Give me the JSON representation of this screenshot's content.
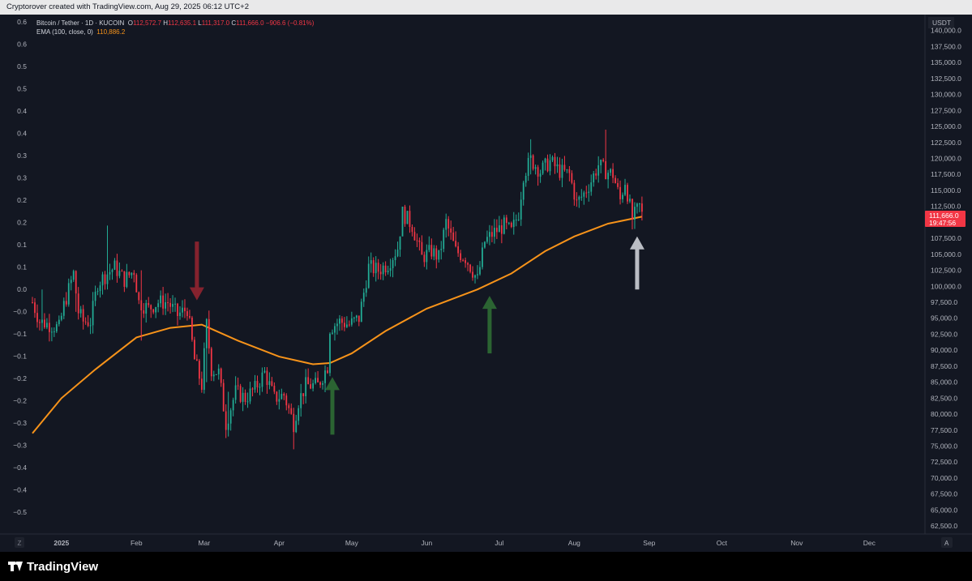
{
  "header": {
    "caption": "Cryptorover created with TradingView.com, Aug 29, 2025 06:12 UTC+2"
  },
  "legend": {
    "symbol": "Bitcoin / Tether · 1D · KUCOIN",
    "open_label": "O",
    "open": "112,572.7",
    "high_label": "H",
    "high": "112,635.1",
    "low_label": "L",
    "low": "111,317.0",
    "close_label": "C",
    "close": "111,666.0",
    "change": "−906.6 (−0.81%)",
    "ema_label": "EMA (100, close, 0)",
    "ema_value": "110,886.2"
  },
  "price_scale": {
    "currency": "USDT",
    "last_price": "111,666.0",
    "countdown": "19:47:56",
    "auto_label": "A"
  },
  "time_scale": {
    "tz_label": "Z"
  },
  "footer": {
    "brand": "TradingView"
  },
  "colors": {
    "up": "#22ab94",
    "down": "#f23645",
    "ema": "#f7931a",
    "background": "#131722",
    "arrow_red": "#8f2430",
    "arrow_green": "#2e6b34",
    "arrow_gray": "#c9ccd3"
  },
  "chart_data": {
    "type": "candlestick",
    "title": "Bitcoin / Tether · 1D · KUCOIN",
    "interval": "1D",
    "xlabel": "",
    "ylabel": "",
    "y_right": {
      "label": "USDT",
      "ylim": [
        61250,
        142500
      ],
      "ticks": [
        62500,
        65000,
        67500,
        70000,
        72500,
        75000,
        77500,
        80000,
        82500,
        85000,
        87500,
        90000,
        92500,
        95000,
        97500,
        100000,
        102500,
        105000,
        107500,
        110000,
        112500,
        115000,
        117500,
        120000,
        122500,
        125000,
        127500,
        130000,
        132500,
        135000,
        137500,
        140000
      ]
    },
    "y_left": {
      "ylim": [
        -0.58,
        0.63
      ],
      "tick_labels": [
        "0.6",
        "0.6",
        "0.5",
        "0.5",
        "0.4",
        "0.4",
        "0.3",
        "0.3",
        "0.2",
        "0.2",
        "0.1",
        "0.1",
        "0.0",
        "−0.0",
        "−0.1",
        "−0.1",
        "−0.2",
        "−0.2",
        "−0.3",
        "−0.3",
        "−0.4",
        "−0.4",
        "−0.5"
      ]
    },
    "x_tick_labels": [
      {
        "label": "2025",
        "date": "2025-01-01",
        "bold": true
      },
      {
        "label": "Feb",
        "date": "2025-02-01"
      },
      {
        "label": "Mar",
        "date": "2025-03-01"
      },
      {
        "label": "Apr",
        "date": "2025-04-01"
      },
      {
        "label": "May",
        "date": "2025-05-01"
      },
      {
        "label": "Jun",
        "date": "2025-06-01"
      },
      {
        "label": "Jul",
        "date": "2025-07-01"
      },
      {
        "label": "Aug",
        "date": "2025-08-01"
      },
      {
        "label": "Sep",
        "date": "2025-09-01"
      },
      {
        "label": "Oct",
        "date": "2025-10-01"
      },
      {
        "label": "Nov",
        "date": "2025-11-01"
      },
      {
        "label": "Dec",
        "date": "2025-12-01"
      }
    ],
    "x_range": [
      "2024-12-20",
      "2025-12-24"
    ],
    "closes": [
      {
        "date": "2024-12-20",
        "close": 97500
      },
      {
        "date": "2024-12-23",
        "close": 94500
      },
      {
        "date": "2024-12-27",
        "close": 94000
      },
      {
        "date": "2024-12-31",
        "close": 93500
      },
      {
        "date": "2025-01-02",
        "close": 97000
      },
      {
        "date": "2025-01-06",
        "close": 102000
      },
      {
        "date": "2025-01-08",
        "close": 96000
      },
      {
        "date": "2025-01-10",
        "close": 94500
      },
      {
        "date": "2025-01-13",
        "close": 94500
      },
      {
        "date": "2025-01-16",
        "close": 100500
      },
      {
        "date": "2025-01-20",
        "close": 102000
      },
      {
        "date": "2025-01-23",
        "close": 103000
      },
      {
        "date": "2025-01-27",
        "close": 101000
      },
      {
        "date": "2025-01-31",
        "close": 102500
      },
      {
        "date": "2025-02-02",
        "close": 97500
      },
      {
        "date": "2025-02-06",
        "close": 96500
      },
      {
        "date": "2025-02-10",
        "close": 97500
      },
      {
        "date": "2025-02-14",
        "close": 97500
      },
      {
        "date": "2025-02-18",
        "close": 95500
      },
      {
        "date": "2025-02-22",
        "close": 96500
      },
      {
        "date": "2025-02-25",
        "close": 88500
      },
      {
        "date": "2025-02-28",
        "close": 84500
      },
      {
        "date": "2025-03-02",
        "close": 94000
      },
      {
        "date": "2025-03-04",
        "close": 87000
      },
      {
        "date": "2025-03-07",
        "close": 86500
      },
      {
        "date": "2025-03-10",
        "close": 78500
      },
      {
        "date": "2025-03-14",
        "close": 83500
      },
      {
        "date": "2025-03-18",
        "close": 82500
      },
      {
        "date": "2025-03-22",
        "close": 84000
      },
      {
        "date": "2025-03-26",
        "close": 86500
      },
      {
        "date": "2025-03-30",
        "close": 82500
      },
      {
        "date": "2025-04-03",
        "close": 83000
      },
      {
        "date": "2025-04-07",
        "close": 78500
      },
      {
        "date": "2025-04-09",
        "close": 82000
      },
      {
        "date": "2025-04-12",
        "close": 84500
      },
      {
        "date": "2025-04-17",
        "close": 84500
      },
      {
        "date": "2025-04-21",
        "close": 87500
      },
      {
        "date": "2025-04-22",
        "close": 93500
      },
      {
        "date": "2025-04-26",
        "close": 94500
      },
      {
        "date": "2025-04-30",
        "close": 94000
      },
      {
        "date": "2025-05-04",
        "close": 95000
      },
      {
        "date": "2025-05-08",
        "close": 103000
      },
      {
        "date": "2025-05-12",
        "close": 102500
      },
      {
        "date": "2025-05-16",
        "close": 103500
      },
      {
        "date": "2025-05-20",
        "close": 106000
      },
      {
        "date": "2025-05-22",
        "close": 111500
      },
      {
        "date": "2025-05-26",
        "close": 109500
      },
      {
        "date": "2025-05-30",
        "close": 104500
      },
      {
        "date": "2025-06-03",
        "close": 105500
      },
      {
        "date": "2025-06-06",
        "close": 104500
      },
      {
        "date": "2025-06-09",
        "close": 110000
      },
      {
        "date": "2025-06-13",
        "close": 105500
      },
      {
        "date": "2025-06-17",
        "close": 104500
      },
      {
        "date": "2025-06-22",
        "close": 101000
      },
      {
        "date": "2025-06-25",
        "close": 107000
      },
      {
        "date": "2025-06-29",
        "close": 108500
      },
      {
        "date": "2025-07-03",
        "close": 109500
      },
      {
        "date": "2025-07-06",
        "close": 108500
      },
      {
        "date": "2025-07-09",
        "close": 111500
      },
      {
        "date": "2025-07-11",
        "close": 117500
      },
      {
        "date": "2025-07-14",
        "close": 119800
      },
      {
        "date": "2025-07-18",
        "close": 118000
      },
      {
        "date": "2025-07-22",
        "close": 119500
      },
      {
        "date": "2025-07-26",
        "close": 118000
      },
      {
        "date": "2025-07-30",
        "close": 117500
      },
      {
        "date": "2025-08-02",
        "close": 113000
      },
      {
        "date": "2025-08-05",
        "close": 114500
      },
      {
        "date": "2025-08-08",
        "close": 116500
      },
      {
        "date": "2025-08-11",
        "close": 119000
      },
      {
        "date": "2025-08-14",
        "close": 118000
      },
      {
        "date": "2025-08-17",
        "close": 117500
      },
      {
        "date": "2025-08-20",
        "close": 113500
      },
      {
        "date": "2025-08-22",
        "close": 116500
      },
      {
        "date": "2025-08-25",
        "close": 110500
      },
      {
        "date": "2025-08-28",
        "close": 112500
      },
      {
        "date": "2025-08-29",
        "close": 111666
      }
    ],
    "highs_lows": [
      {
        "date": "2024-12-24",
        "high": 99500,
        "low": 93000
      },
      {
        "date": "2025-01-07",
        "high": 102500,
        "low": 96000
      },
      {
        "date": "2025-01-20",
        "high": 109500,
        "low": 99500
      },
      {
        "date": "2025-02-03",
        "high": 102500,
        "low": 91500
      },
      {
        "date": "2025-03-02",
        "high": 95000,
        "low": 85000
      },
      {
        "date": "2025-03-11",
        "high": 83500,
        "low": 76500
      },
      {
        "date": "2025-04-07",
        "high": 81000,
        "low": 74500
      },
      {
        "date": "2025-05-22",
        "high": 112000,
        "low": 108500
      },
      {
        "date": "2025-07-14",
        "high": 123000,
        "low": 117500
      },
      {
        "date": "2025-08-14",
        "high": 124500,
        "low": 117000
      },
      {
        "date": "2025-08-25",
        "high": 113500,
        "low": 108900
      }
    ],
    "ema": {
      "label": "EMA (100, close, 0)",
      "points": [
        {
          "date": "2024-12-20",
          "value": 77000
        },
        {
          "date": "2025-01-01",
          "value": 82500
        },
        {
          "date": "2025-01-15",
          "value": 87000
        },
        {
          "date": "2025-02-01",
          "value": 92000
        },
        {
          "date": "2025-02-15",
          "value": 93500
        },
        {
          "date": "2025-02-28",
          "value": 94000
        },
        {
          "date": "2025-03-15",
          "value": 91500
        },
        {
          "date": "2025-04-01",
          "value": 89000
        },
        {
          "date": "2025-04-15",
          "value": 87800
        },
        {
          "date": "2025-04-22",
          "value": 88000
        },
        {
          "date": "2025-05-01",
          "value": 89500
        },
        {
          "date": "2025-05-15",
          "value": 93000
        },
        {
          "date": "2025-06-01",
          "value": 96500
        },
        {
          "date": "2025-06-22",
          "value": 99500
        },
        {
          "date": "2025-07-06",
          "value": 102000
        },
        {
          "date": "2025-07-20",
          "value": 105500
        },
        {
          "date": "2025-08-01",
          "value": 107800
        },
        {
          "date": "2025-08-15",
          "value": 109800
        },
        {
          "date": "2025-08-29",
          "value": 110886
        }
      ]
    },
    "annotations": [
      {
        "type": "arrow-down",
        "color": "red",
        "date": "2025-02-26",
        "from": 107000,
        "to": 97800
      },
      {
        "type": "arrow-up",
        "color": "green",
        "date": "2025-04-23",
        "from": 76800,
        "to": 85800
      },
      {
        "type": "arrow-up",
        "color": "green",
        "date": "2025-06-27",
        "from": 89500,
        "to": 98500
      },
      {
        "type": "arrow-up",
        "color": "gray",
        "date": "2025-08-27",
        "from": 99500,
        "to": 107800
      }
    ],
    "grid": false,
    "legend": "top-left"
  }
}
